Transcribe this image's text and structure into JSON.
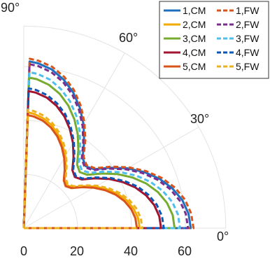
{
  "chart_data": {
    "type": "line",
    "coordinate_system": "polar (quarter, 0° to 90°)",
    "grid": true,
    "legend_placement": "top-right",
    "title": "",
    "xlabel": "",
    "ylabel": "",
    "radial_range": [
      0,
      75
    ],
    "radial_tick_labels": [
      "0",
      "20",
      "40",
      "60"
    ],
    "angle_range_deg": [
      0,
      90
    ],
    "angle_tick_labels": [
      "0°",
      "30°",
      "60°",
      "90°"
    ],
    "angles_deg": [
      0,
      5,
      10,
      15,
      20,
      25,
      30,
      35,
      40,
      45,
      50,
      55,
      60,
      65,
      70,
      75,
      80,
      85,
      88
    ],
    "series": [
      {
        "name": "1,CM",
        "style": "solid",
        "color": "#1f6fbf",
        "radii": [
          62,
          61.4,
          59.8,
          57.1,
          53.6,
          49.3,
          44.4,
          39.1,
          34,
          32.5,
          34,
          39.1,
          44.4,
          49.3,
          53.6,
          57.1,
          59.8,
          61.4,
          61.9
        ]
      },
      {
        "name": "1,FW",
        "style": "dashed",
        "color": "#d9541a",
        "radii": [
          63,
          62.4,
          60.8,
          58.1,
          54.5,
          50.1,
          45.1,
          39.8,
          34.6,
          33.0,
          34.6,
          39.8,
          45.1,
          50.1,
          54.5,
          58.1,
          60.8,
          62.4,
          62.9
        ]
      },
      {
        "name": "2,CM",
        "style": "solid",
        "color": "#f2a900",
        "radii": [
          43,
          42.6,
          41.4,
          39.6,
          37.1,
          34.1,
          30.8,
          27.1,
          23.6,
          22.5,
          23.6,
          27.1,
          30.8,
          34.1,
          37.1,
          39.6,
          41.4,
          42.6,
          43
        ]
      },
      {
        "name": "2,FW",
        "style": "dashed",
        "color": "#7a2e8e",
        "radii": [
          61,
          60.4,
          58.8,
          56.2,
          52.7,
          48.5,
          43.7,
          38.5,
          33.5,
          32.0,
          33.5,
          38.5,
          43.7,
          48.5,
          52.7,
          56.2,
          58.8,
          60.4,
          60.9
        ]
      },
      {
        "name": "3,CM",
        "style": "solid",
        "color": "#77ac30",
        "radii": [
          56,
          55.5,
          54,
          51.6,
          48.4,
          44.5,
          40.1,
          35.3,
          30.8,
          29.4,
          30.8,
          35.3,
          40.1,
          44.5,
          48.4,
          51.6,
          54,
          55.5,
          55.9
        ]
      },
      {
        "name": "3,FW",
        "style": "dashed",
        "color": "#4dbeee",
        "radii": [
          58,
          57.5,
          56,
          53.4,
          50.1,
          46.1,
          41.5,
          36.6,
          31.9,
          30.4,
          31.9,
          36.6,
          41.5,
          46.1,
          50.1,
          53.4,
          56,
          57.5,
          57.9
        ]
      },
      {
        "name": "4,CM",
        "style": "solid",
        "color": "#a2142f",
        "radii": [
          51,
          50.5,
          49.2,
          47,
          44.1,
          40.5,
          36.5,
          32.2,
          28.1,
          26.8,
          28.1,
          32.2,
          36.5,
          40.5,
          44.1,
          47,
          49.2,
          50.5,
          50.9
        ]
      },
      {
        "name": "4,FW",
        "style": "dashed",
        "color": "#0b57b5",
        "radii": [
          52,
          51.5,
          50.1,
          47.9,
          45,
          41.3,
          37.2,
          32.8,
          28.6,
          27.3,
          28.6,
          32.8,
          37.2,
          41.3,
          45,
          47.9,
          50.1,
          51.5,
          51.9
        ]
      },
      {
        "name": "5,CM",
        "style": "solid",
        "color": "#d9541a",
        "radii": [
          42,
          41.6,
          40.5,
          38.7,
          36.3,
          33.3,
          30,
          26.5,
          23.1,
          22.0,
          23.1,
          26.5,
          30,
          33.3,
          36.3,
          38.7,
          40.5,
          41.6,
          42
        ]
      },
      {
        "name": "5,FW",
        "style": "dashed",
        "color": "#edb120",
        "radii": [
          44,
          43.6,
          42.4,
          40.5,
          38,
          34.9,
          31.5,
          27.7,
          24.2,
          23.0,
          24.2,
          27.7,
          31.5,
          34.9,
          38,
          40.5,
          42.4,
          43.6,
          44
        ]
      }
    ]
  }
}
